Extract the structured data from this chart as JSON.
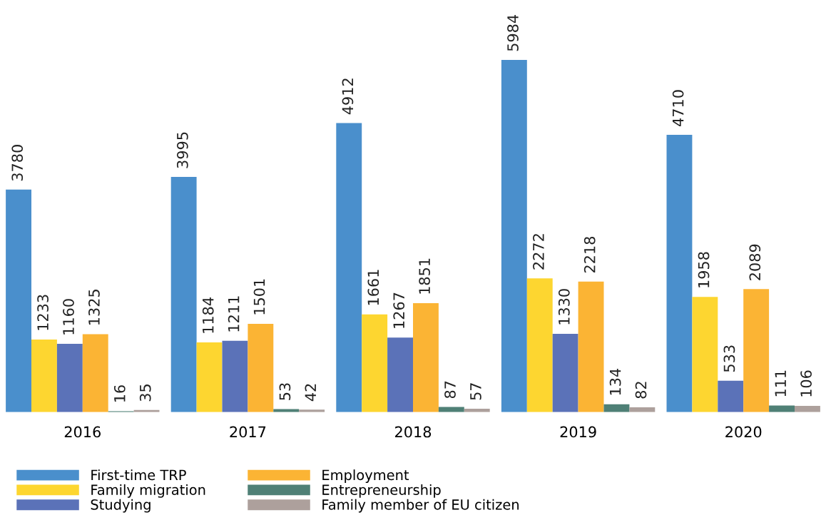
{
  "chart_data": {
    "type": "bar",
    "categories": [
      "2016",
      "2017",
      "2018",
      "2019",
      "2020"
    ],
    "series": [
      {
        "name": "First-time TRP",
        "color": "#4a8fcc",
        "values": [
          3780,
          3995,
          4912,
          5984,
          4710
        ]
      },
      {
        "name": "Family migration",
        "color": "#fdd630",
        "values": [
          1233,
          1184,
          1661,
          2272,
          1958
        ]
      },
      {
        "name": "Studying",
        "color": "#5b72b8",
        "values": [
          1160,
          1211,
          1267,
          1330,
          533
        ]
      },
      {
        "name": "Employment",
        "color": "#fbb434",
        "values": [
          1325,
          1501,
          1851,
          2218,
          2089
        ]
      },
      {
        "name": "Entrepreneurship",
        "color": "#4f8076",
        "values": [
          16,
          53,
          87,
          134,
          111
        ]
      },
      {
        "name": "Family member of EU citizen",
        "color": "#ada09c",
        "values": [
          35,
          42,
          57,
          82,
          106
        ]
      }
    ],
    "data_labels": true,
    "legend": "bottom left",
    "tick_labels": "x",
    "grid": false
  }
}
